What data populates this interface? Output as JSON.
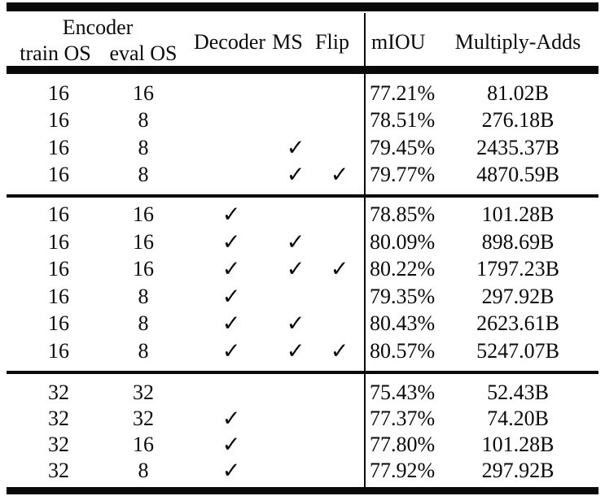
{
  "table": {
    "header": {
      "encoder_group": "Encoder",
      "train_os": "train OS",
      "eval_os": "eval OS",
      "decoder": "Decoder",
      "ms": "MS",
      "flip": "Flip",
      "miou": "mIOU",
      "multiply_adds": "Multiply-Adds"
    },
    "checkmark_glyph": "✓",
    "text_color": "#0a0a0a",
    "groups": [
      {
        "rows": [
          {
            "train_os": "16",
            "eval_os": "16",
            "decoder": false,
            "ms": false,
            "flip": false,
            "miou": "77.21%",
            "multiply_adds": "81.02B"
          },
          {
            "train_os": "16",
            "eval_os": "8",
            "decoder": false,
            "ms": false,
            "flip": false,
            "miou": "78.51%",
            "multiply_adds": "276.18B"
          },
          {
            "train_os": "16",
            "eval_os": "8",
            "decoder": false,
            "ms": true,
            "flip": false,
            "miou": "79.45%",
            "multiply_adds": "2435.37B"
          },
          {
            "train_os": "16",
            "eval_os": "8",
            "decoder": false,
            "ms": true,
            "flip": true,
            "miou": "79.77%",
            "multiply_adds": "4870.59B"
          }
        ]
      },
      {
        "rows": [
          {
            "train_os": "16",
            "eval_os": "16",
            "decoder": true,
            "ms": false,
            "flip": false,
            "miou": "78.85%",
            "multiply_adds": "101.28B"
          },
          {
            "train_os": "16",
            "eval_os": "16",
            "decoder": true,
            "ms": true,
            "flip": false,
            "miou": "80.09%",
            "multiply_adds": "898.69B"
          },
          {
            "train_os": "16",
            "eval_os": "16",
            "decoder": true,
            "ms": true,
            "flip": true,
            "miou": "80.22%",
            "multiply_adds": "1797.23B"
          },
          {
            "train_os": "16",
            "eval_os": "8",
            "decoder": true,
            "ms": false,
            "flip": false,
            "miou": "79.35%",
            "multiply_adds": "297.92B"
          },
          {
            "train_os": "16",
            "eval_os": "8",
            "decoder": true,
            "ms": true,
            "flip": false,
            "miou": "80.43%",
            "multiply_adds": "2623.61B"
          },
          {
            "train_os": "16",
            "eval_os": "8",
            "decoder": true,
            "ms": true,
            "flip": true,
            "miou": "80.57%",
            "multiply_adds": "5247.07B"
          }
        ]
      },
      {
        "rows": [
          {
            "train_os": "32",
            "eval_os": "32",
            "decoder": false,
            "ms": false,
            "flip": false,
            "miou": "75.43%",
            "multiply_adds": "52.43B"
          },
          {
            "train_os": "32",
            "eval_os": "32",
            "decoder": true,
            "ms": false,
            "flip": false,
            "miou": "77.37%",
            "multiply_adds": "74.20B"
          },
          {
            "train_os": "32",
            "eval_os": "16",
            "decoder": true,
            "ms": false,
            "flip": false,
            "miou": "77.80%",
            "multiply_adds": "101.28B"
          },
          {
            "train_os": "32",
            "eval_os": "8",
            "decoder": true,
            "ms": false,
            "flip": false,
            "miou": "77.92%",
            "multiply_adds": "297.92B"
          }
        ]
      }
    ]
  }
}
